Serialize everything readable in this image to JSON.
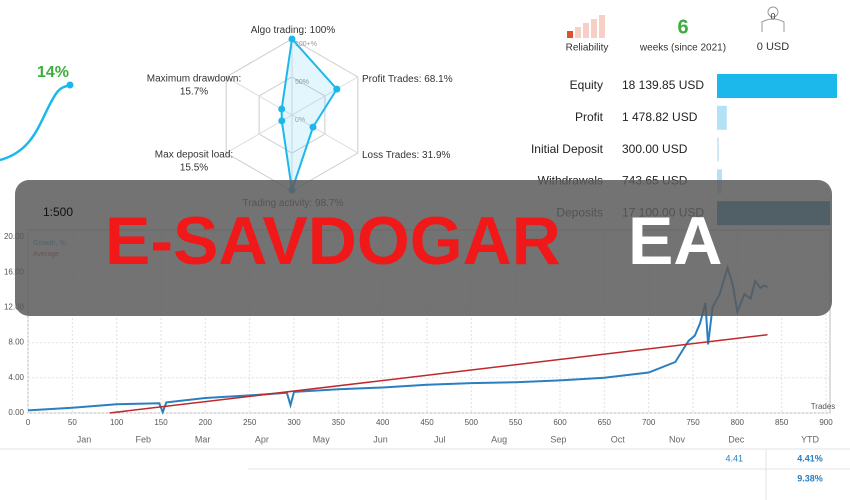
{
  "growth_badge": "14%",
  "leverage": "1:500",
  "stats": {
    "reliability_label": "Reliability",
    "weeks": "6",
    "weeks_label": "weeks (since 2021)",
    "investors": "0",
    "investors_funds": "0 USD"
  },
  "banner": {
    "title": "E-SAVDOGAR",
    "suffix": "EA"
  },
  "months": [
    "Jan",
    "Feb",
    "Mar",
    "Apr",
    "May",
    "Jun",
    "Jul",
    "Aug",
    "Sep",
    "Oct",
    "Nov",
    "Dec",
    "YTD"
  ],
  "ytd_table": {
    "dec": "4.41",
    "ytd_1": "4.41%",
    "ytd_2": "9.38%"
  },
  "chart_data": [
    {
      "type": "radar",
      "categories": [
        "Algo trading:",
        "Profit Trades:",
        "Loss Trades:",
        "Trading activity:",
        "Max deposit load:",
        "Maximum drawdown:"
      ],
      "values": [
        100,
        68.1,
        31.9,
        98.7,
        15.5,
        15.7
      ],
      "value_labels": [
        "100%",
        "68.1%",
        "31.9%",
        "98.7%",
        "15.5%",
        "15.7%"
      ],
      "rlim": [
        0,
        100
      ],
      "rticks": [
        {
          "value": 100,
          "label": "100+%"
        },
        {
          "value": 50,
          "label": "50%"
        },
        {
          "value": 0,
          "label": "0%"
        }
      ],
      "color": "#1cb8ec"
    },
    {
      "type": "hbar",
      "categories": [
        "Equity",
        "Profit",
        "Initial Deposit",
        "Withdrawals",
        "Deposits"
      ],
      "values": [
        18139.85,
        1478.82,
        300.0,
        743.65,
        17100.0
      ],
      "value_labels": [
        "18 139.85 USD",
        "1 478.82 USD",
        "300.00 USD",
        "743.65 USD",
        "17 100.00 USD"
      ],
      "colors": [
        "#1cb8ec",
        "#b3e2f5",
        "#cfeaf5",
        "#b3e2f5",
        "#1a7fa8"
      ],
      "xlim": [
        0,
        18140
      ]
    },
    {
      "type": "line",
      "xlabel": "Trades",
      "xlim": [
        0,
        900
      ],
      "ylim": [
        0,
        20
      ],
      "xticks": [
        0,
        50,
        100,
        150,
        200,
        250,
        300,
        350,
        400,
        450,
        500,
        550,
        600,
        650,
        700,
        750,
        800,
        850,
        900
      ],
      "yticks": [
        {
          "value": 0,
          "label": "0.00"
        },
        {
          "value": 4,
          "label": "4.00"
        },
        {
          "value": 8,
          "label": "8.00"
        },
        {
          "value": 12,
          "label": "12.00"
        },
        {
          "value": 16,
          "label": "16.00"
        },
        {
          "value": 20,
          "label": "20.00"
        }
      ],
      "grid": true,
      "series": [
        {
          "name": "Growth, %",
          "color": "#2a7fc0",
          "x": [
            0,
            50,
            100,
            148,
            152,
            156,
            200,
            250,
            292,
            296,
            300,
            350,
            400,
            450,
            500,
            550,
            600,
            650,
            700,
            730,
            740,
            745,
            752,
            758,
            764,
            767,
            772,
            780,
            789,
            795,
            800,
            808,
            815,
            820,
            826,
            830,
            834
          ],
          "values": [
            0.3,
            0.6,
            1.0,
            1.1,
            0.1,
            1.2,
            1.7,
            2.0,
            2.3,
            0.9,
            2.4,
            2.7,
            2.9,
            3.2,
            3.4,
            3.5,
            3.7,
            4.0,
            4.6,
            5.8,
            7.4,
            8.2,
            8.8,
            10.2,
            12.5,
            7.8,
            12.0,
            13.5,
            16.5,
            14.5,
            11.5,
            13.5,
            13.0,
            15.0,
            14.2,
            14.5,
            14.3
          ]
        },
        {
          "name": "Average",
          "color": "#c0282a",
          "x": [
            92,
            834
          ],
          "values": [
            0,
            8.9
          ]
        }
      ]
    }
  ]
}
